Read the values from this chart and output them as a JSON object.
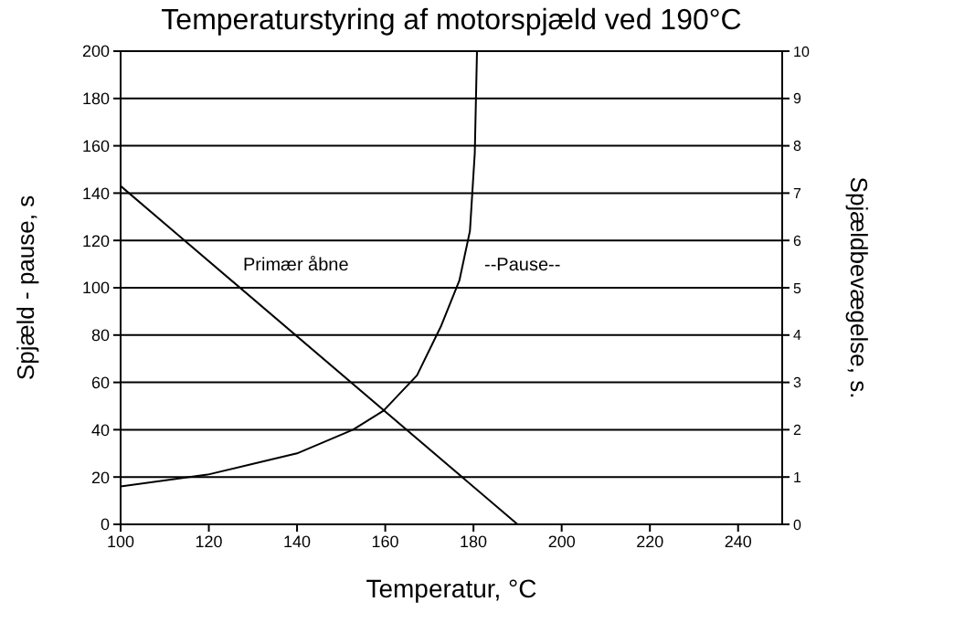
{
  "chart_data": {
    "type": "line",
    "title": "Temperaturstyring af motorspjæld ved 190°C",
    "xlabel": "Temperatur, °C",
    "ylabel": "Spjæld - pause, s",
    "y2label": "Spjældbevægelse, s.",
    "series": [
      {
        "color": "#000000",
        "x": [
          100,
          119.7,
          140,
          152.7,
          159.6,
          167.2,
          172.7,
          176.8,
          179.2,
          180.3,
          180.8
        ],
        "values": [
          16,
          21,
          30,
          40,
          48,
          63,
          84,
          103,
          124,
          157,
          200
        ]
      },
      {
        "color": "#000000",
        "x": [
          100,
          190
        ],
        "values": [
          143,
          0
        ]
      }
    ],
    "xlim": [
      100,
      250
    ],
    "xticks": [
      100,
      120,
      140,
      160,
      180,
      200,
      220,
      240
    ],
    "ylim": [
      0,
      200
    ],
    "yticks": [
      0,
      20,
      40,
      60,
      80,
      100,
      120,
      140,
      160,
      180,
      200
    ],
    "y2lim": [
      0,
      10
    ],
    "y2ticks": [
      0,
      1,
      2,
      3,
      4,
      5,
      6,
      7,
      8,
      9,
      10
    ],
    "grid": "y",
    "marker": "none",
    "line_style": "solid",
    "annotations": [
      "Primær åbne",
      "--Pause--"
    ]
  }
}
